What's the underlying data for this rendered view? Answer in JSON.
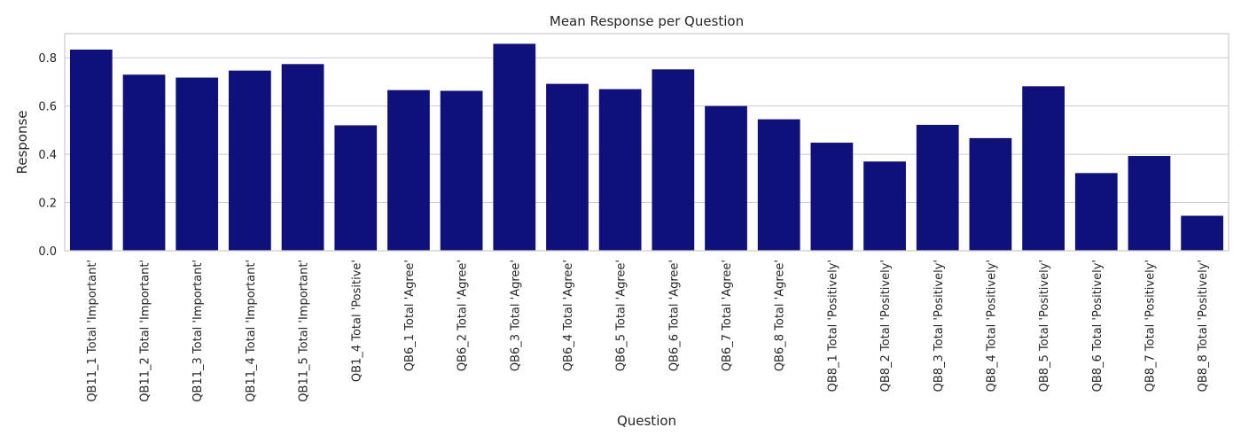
{
  "chart_data": {
    "type": "bar",
    "title": "Mean Response per Question",
    "xlabel": "Question",
    "ylabel": "Response",
    "ylim": [
      0,
      0.9
    ],
    "yticks": [
      0.0,
      0.2,
      0.4,
      0.6,
      0.8
    ],
    "ytick_labels": [
      "0.0",
      "0.2",
      "0.4",
      "0.6",
      "0.8"
    ],
    "grid": "horizontal",
    "bar_color": "#10107c",
    "categories": [
      "QB11_1 Total 'Important'",
      "QB11_2 Total 'Important'",
      "QB11_3 Total 'Important'",
      "QB11_4 Total 'Important'",
      "QB11_5 Total 'Important'",
      "QB1_4 Total 'Positive'",
      "QB6_1 Total 'Agree'",
      "QB6_2 Total 'Agree'",
      "QB6_3 Total 'Agree'",
      "QB6_4 Total 'Agree'",
      "QB6_5 Total 'Agree'",
      "QB6_6 Total 'Agree'",
      "QB6_7 Total 'Agree'",
      "QB6_8 Total 'Agree'",
      "QB8_1 Total 'Positively'",
      "QB8_2 Total 'Positively'",
      "QB8_3 Total 'Positively'",
      "QB8_4 Total 'Positively'",
      "QB8_5 Total 'Positively'",
      "QB8_6 Total 'Positively'",
      "QB8_7 Total 'Positively'",
      "QB8_8 Total 'Positively'"
    ],
    "values": [
      0.834,
      0.73,
      0.718,
      0.747,
      0.774,
      0.52,
      0.666,
      0.663,
      0.858,
      0.692,
      0.67,
      0.752,
      0.6,
      0.545,
      0.448,
      0.37,
      0.522,
      0.467,
      0.682,
      0.322,
      0.393,
      0.145
    ]
  }
}
